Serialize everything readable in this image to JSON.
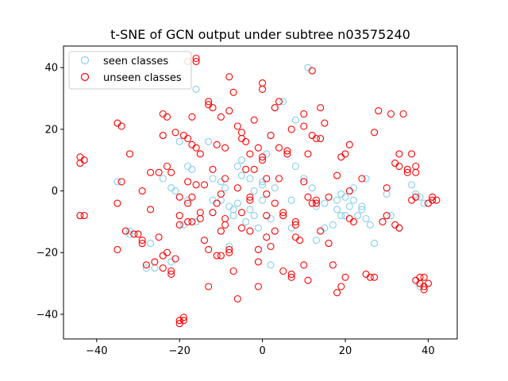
{
  "chart_data": {
    "type": "scatter",
    "title": "t-SNE of GCN output under subtree n03575240",
    "xlabel": "",
    "ylabel": "",
    "xlim": [
      -48,
      47
    ],
    "ylim": [
      -48,
      47
    ],
    "xticks": [
      -40,
      -20,
      0,
      20,
      40
    ],
    "yticks": [
      -40,
      -20,
      0,
      20,
      40
    ],
    "grid": false,
    "legend_position": "top-left",
    "series": [
      {
        "name": "seen classes",
        "color": "#87ceeb",
        "marker": "open-circle",
        "points": [
          [
            -44,
            -8
          ],
          [
            -43,
            10
          ],
          [
            -35,
            3
          ],
          [
            -32,
            -13
          ],
          [
            -32,
            -14
          ],
          [
            -28,
            -25
          ],
          [
            -27,
            -17
          ],
          [
            -26,
            -25
          ],
          [
            -24,
            4
          ],
          [
            -22,
            -23
          ],
          [
            -22,
            1
          ],
          [
            -21,
            0
          ],
          [
            -20,
            16
          ],
          [
            -19,
            -11
          ],
          [
            -18,
            -3
          ],
          [
            -18,
            8
          ],
          [
            -17,
            7
          ],
          [
            -16,
            33
          ],
          [
            -16,
            -10
          ],
          [
            -13,
            16
          ],
          [
            -12,
            -7
          ],
          [
            -12,
            -3
          ],
          [
            -12,
            4
          ],
          [
            -10,
            -3
          ],
          [
            -10,
            3
          ],
          [
            -9,
            1
          ],
          [
            -8,
            -18
          ],
          [
            -8,
            -5
          ],
          [
            -7,
            -8
          ],
          [
            -7,
            -6
          ],
          [
            -6,
            8
          ],
          [
            -6,
            -4
          ],
          [
            -5,
            5
          ],
          [
            -5,
            10
          ],
          [
            -4,
            -10
          ],
          [
            -3,
            -6
          ],
          [
            -3,
            4
          ],
          [
            -2,
            -8
          ],
          [
            -2,
            0
          ],
          [
            -1,
            -12
          ],
          [
            0,
            -3
          ],
          [
            0,
            2
          ],
          [
            0,
            3
          ],
          [
            1,
            12
          ],
          [
            2,
            -9
          ],
          [
            2,
            -24
          ],
          [
            3,
            1
          ],
          [
            3,
            27
          ],
          [
            5,
            29
          ],
          [
            7,
            -3
          ],
          [
            7,
            -12
          ],
          [
            8,
            8
          ],
          [
            8,
            23
          ],
          [
            10,
            4
          ],
          [
            11,
            40
          ],
          [
            12,
            1
          ],
          [
            13,
            -5
          ],
          [
            13,
            -16
          ],
          [
            15,
            -4
          ],
          [
            15,
            -12
          ],
          [
            17,
            -11
          ],
          [
            18,
            -3
          ],
          [
            18,
            -6
          ],
          [
            19,
            -1
          ],
          [
            19,
            -8
          ],
          [
            19,
            11
          ],
          [
            20,
            -2
          ],
          [
            20,
            -8
          ],
          [
            21,
            -5
          ],
          [
            22,
            1
          ],
          [
            22,
            -3
          ],
          [
            23,
            -8
          ],
          [
            24,
            -5
          ],
          [
            24,
            -6
          ],
          [
            25,
            4
          ],
          [
            25,
            -9
          ],
          [
            26,
            -11
          ],
          [
            27,
            -17
          ],
          [
            30,
            -1
          ],
          [
            31,
            -8
          ],
          [
            33,
            -12
          ],
          [
            33,
            -12
          ],
          [
            35,
            7
          ],
          [
            36,
            2
          ],
          [
            37,
            -1
          ],
          [
            38,
            -2
          ],
          [
            38,
            -30
          ],
          [
            38,
            -31
          ],
          [
            39,
            -4
          ],
          [
            40,
            -4
          ]
        ]
      },
      {
        "name": "unseen classes",
        "color": "#ff0000",
        "marker": "open-circle",
        "points": [
          [
            -44,
            -8
          ],
          [
            -43,
            -8
          ],
          [
            -44,
            9
          ],
          [
            -44,
            11
          ],
          [
            -43,
            10
          ],
          [
            -35,
            22
          ],
          [
            -34,
            21
          ],
          [
            -35,
            -4
          ],
          [
            -35,
            -19
          ],
          [
            -34,
            3
          ],
          [
            -32,
            12
          ],
          [
            -33,
            -13
          ],
          [
            -31,
            -14
          ],
          [
            -30,
            -14
          ],
          [
            -29,
            0
          ],
          [
            -29,
            -17
          ],
          [
            -29,
            -16
          ],
          [
            -28,
            -24
          ],
          [
            -27,
            6
          ],
          [
            -27,
            -6
          ],
          [
            -26,
            -23
          ],
          [
            -25,
            -15
          ],
          [
            -25,
            6
          ],
          [
            -24,
            25
          ],
          [
            -24,
            18
          ],
          [
            -24,
            -21
          ],
          [
            -24,
            -25
          ],
          [
            -23,
            8
          ],
          [
            -23,
            24
          ],
          [
            -23,
            -20
          ],
          [
            -22,
            6
          ],
          [
            -22,
            -26
          ],
          [
            -22,
            -27
          ],
          [
            -21,
            19
          ],
          [
            -21,
            -22
          ],
          [
            -20,
            -2
          ],
          [
            -20,
            -8
          ],
          [
            -20,
            -11
          ],
          [
            -20,
            -42
          ],
          [
            -20,
            -43
          ],
          [
            -19,
            18
          ],
          [
            -19,
            -42
          ],
          [
            -19,
            -41
          ],
          [
            -18,
            17
          ],
          [
            -18,
            -4
          ],
          [
            -18,
            -10
          ],
          [
            -18,
            3
          ],
          [
            -18,
            42
          ],
          [
            -17,
            15
          ],
          [
            -17,
            24
          ],
          [
            -17,
            -10
          ],
          [
            -17,
            -2
          ],
          [
            -16,
            43
          ],
          [
            -16,
            42
          ],
          [
            -16,
            14
          ],
          [
            -16,
            2
          ],
          [
            -15,
            -9
          ],
          [
            -15,
            12
          ],
          [
            -15,
            -7
          ],
          [
            -14,
            2
          ],
          [
            -14,
            -16
          ],
          [
            -13,
            -19
          ],
          [
            -13,
            -31
          ],
          [
            -13,
            28
          ],
          [
            -13,
            29
          ],
          [
            -12,
            27
          ],
          [
            -12,
            7
          ],
          [
            -12,
            -7
          ],
          [
            -11,
            -21
          ],
          [
            -11,
            -4
          ],
          [
            -11,
            15
          ],
          [
            -10,
            24
          ],
          [
            -10,
            -1
          ],
          [
            -10,
            -13
          ],
          [
            -10,
            -21
          ],
          [
            -9,
            14
          ],
          [
            -9,
            -9
          ],
          [
            -9,
            -11
          ],
          [
            -9,
            4
          ],
          [
            -8,
            37
          ],
          [
            -8,
            -20
          ],
          [
            -8,
            -19
          ],
          [
            -8,
            26
          ],
          [
            -7,
            32
          ],
          [
            -7,
            -26
          ],
          [
            -6,
            21
          ],
          [
            -6,
            -35
          ],
          [
            -6,
            1
          ],
          [
            -5,
            -7
          ],
          [
            -5,
            -12
          ],
          [
            -5,
            17
          ],
          [
            -5,
            19
          ],
          [
            -4,
            7
          ],
          [
            -4,
            16
          ],
          [
            -3,
            -3
          ],
          [
            -3,
            -2
          ],
          [
            -3,
            12
          ],
          [
            -3,
            -13
          ],
          [
            -2,
            23
          ],
          [
            -2,
            7
          ],
          [
            -1,
            -23
          ],
          [
            -1,
            -31
          ],
          [
            -1,
            -19
          ],
          [
            -1,
            14
          ],
          [
            0,
            35
          ],
          [
            0,
            33
          ],
          [
            0,
            11
          ],
          [
            0,
            10
          ],
          [
            1,
            -1
          ],
          [
            1,
            -8
          ],
          [
            1,
            4
          ],
          [
            1,
            -15
          ],
          [
            2,
            18
          ],
          [
            2,
            -18
          ],
          [
            3,
            -13
          ],
          [
            3,
            -4
          ],
          [
            3,
            27
          ],
          [
            4,
            29
          ],
          [
            4,
            4
          ],
          [
            4,
            14
          ],
          [
            5,
            -7
          ],
          [
            5,
            -26
          ],
          [
            5,
            -8
          ],
          [
            6,
            13
          ],
          [
            6,
            12
          ],
          [
            7,
            -27
          ],
          [
            7,
            -28
          ],
          [
            7,
            20
          ],
          [
            8,
            -10
          ],
          [
            8,
            -11
          ],
          [
            8,
            -15
          ],
          [
            9,
            -16
          ],
          [
            10,
            -24
          ],
          [
            10,
            3
          ],
          [
            10,
            21
          ],
          [
            10,
            25
          ],
          [
            11,
            -29
          ],
          [
            11,
            -2
          ],
          [
            11,
            12
          ],
          [
            12,
            39
          ],
          [
            12,
            18
          ],
          [
            12,
            -4
          ],
          [
            13,
            -4
          ],
          [
            13,
            -3
          ],
          [
            13,
            17
          ],
          [
            14,
            27
          ],
          [
            14,
            -13
          ],
          [
            14,
            17
          ],
          [
            15,
            22
          ],
          [
            16,
            -17
          ],
          [
            16,
            -2
          ],
          [
            17,
            -24
          ],
          [
            18,
            -33
          ],
          [
            18,
            5
          ],
          [
            19,
            -31
          ],
          [
            19,
            11
          ],
          [
            20,
            12
          ],
          [
            20,
            -28
          ],
          [
            21,
            0
          ],
          [
            21,
            15
          ],
          [
            21,
            -9
          ],
          [
            22,
            -10
          ],
          [
            24,
            4
          ],
          [
            25,
            -27
          ],
          [
            26,
            -28
          ],
          [
            27,
            -28
          ],
          [
            27,
            19
          ],
          [
            28,
            26
          ],
          [
            29,
            -10
          ],
          [
            30,
            -8
          ],
          [
            30,
            1
          ],
          [
            31,
            25
          ],
          [
            32,
            -11
          ],
          [
            32,
            9
          ],
          [
            33,
            -12
          ],
          [
            33,
            8
          ],
          [
            33,
            12
          ],
          [
            34,
            25
          ],
          [
            35,
            6
          ],
          [
            35,
            7
          ],
          [
            36,
            -3
          ],
          [
            36,
            12
          ],
          [
            37,
            8
          ],
          [
            37,
            -2
          ],
          [
            37,
            6
          ],
          [
            37,
            -29
          ],
          [
            38,
            -28
          ],
          [
            38,
            -30
          ],
          [
            39,
            -32
          ],
          [
            39,
            -28
          ],
          [
            39,
            -31
          ],
          [
            40,
            -30
          ],
          [
            40,
            -4
          ],
          [
            41,
            -2
          ],
          [
            41,
            -3
          ],
          [
            42,
            -3
          ]
        ]
      }
    ]
  }
}
